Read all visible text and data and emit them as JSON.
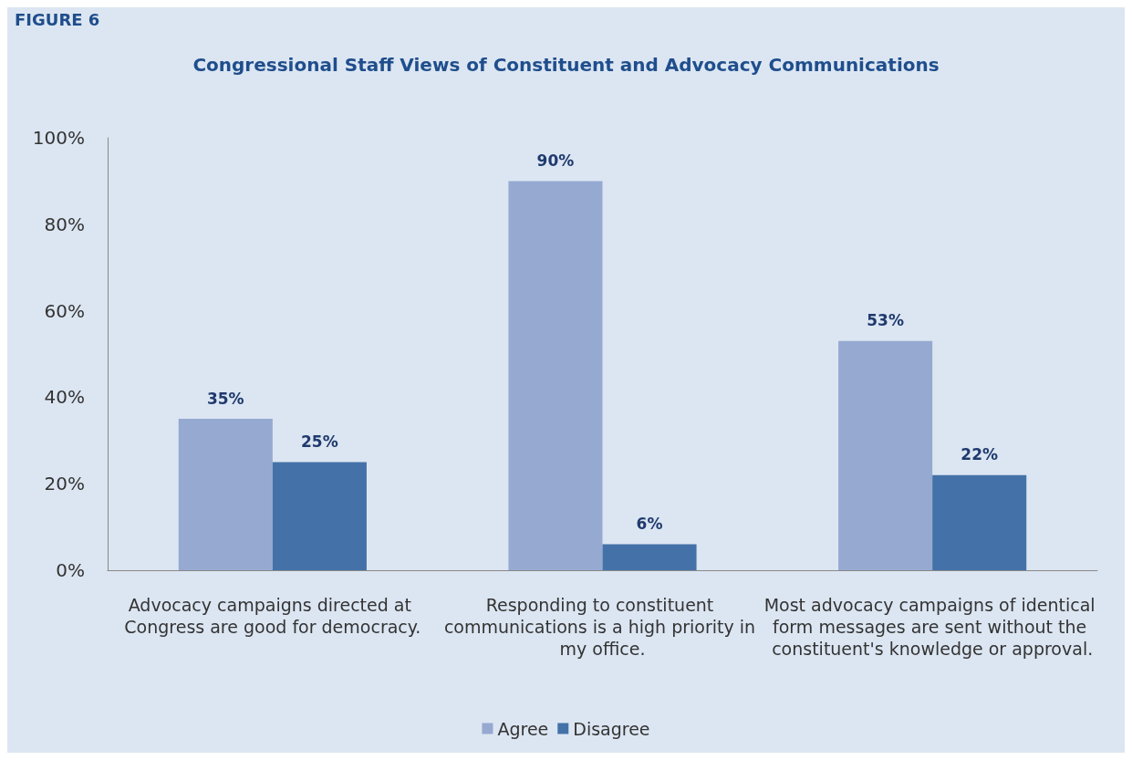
{
  "chart_data": {
    "type": "bar",
    "title": "Congressional Staff Views of Constituent and Advocacy Communications",
    "annotations": [
      "FIGURE 6"
    ],
    "categories": [
      "Advocacy campaigns directed at Congress are good for democracy.",
      "Responding to constituent communications is a high priority in my office.",
      "Most advocacy campaigns of identical form messages are sent without the constituent's knowledge or approval."
    ],
    "series": [
      {
        "name": "Agree",
        "color": "#95a9d1",
        "values": [
          35,
          90,
          53
        ]
      },
      {
        "name": "Disagree",
        "color": "#4472a8",
        "values": [
          25,
          6,
          22
        ]
      }
    ],
    "value_labels": [
      [
        "35%",
        "90%",
        "53%"
      ],
      [
        "25%",
        "6%",
        "22%"
      ]
    ],
    "ylim": [
      0,
      100
    ],
    "yticks": [
      {
        "value": 0,
        "label": "0%"
      },
      {
        "value": 20,
        "label": "20%"
      },
      {
        "value": 40,
        "label": "40%"
      },
      {
        "value": 60,
        "label": "60%"
      },
      {
        "value": 80,
        "label": "80%"
      },
      {
        "value": 100,
        "label": "100%"
      }
    ],
    "grid": false,
    "legend": "bottom"
  }
}
